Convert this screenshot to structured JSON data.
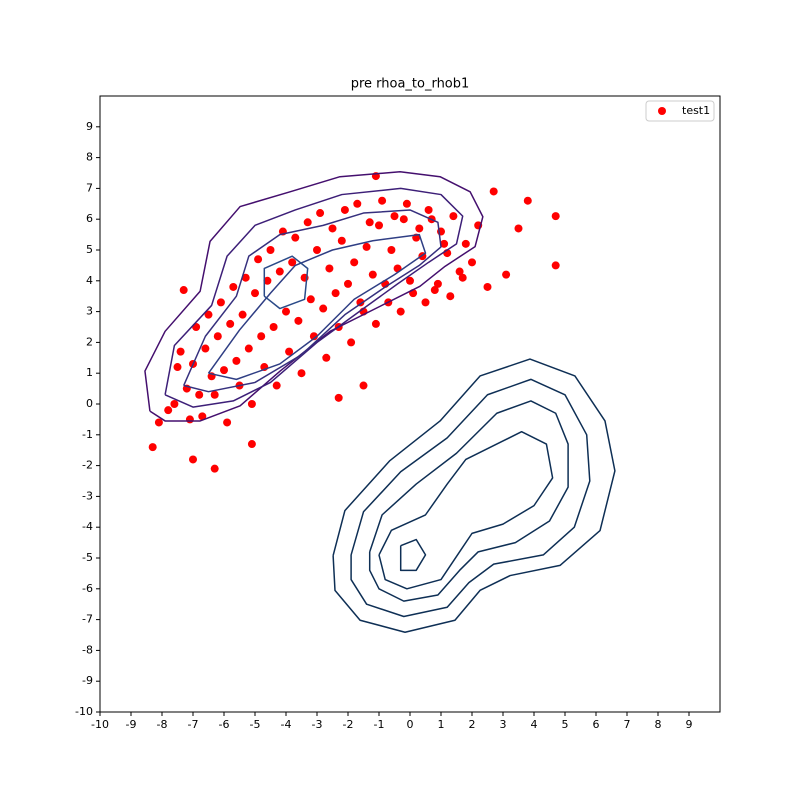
{
  "chart_data": {
    "type": "scatter",
    "title": "pre rhoa_to_rhob1",
    "xlim": [
      -10,
      10
    ],
    "ylim": [
      -10,
      10
    ],
    "xticks": [
      -10,
      -9,
      -8,
      -7,
      -6,
      -5,
      -4,
      -3,
      -2,
      -1,
      0,
      1,
      2,
      3,
      4,
      5,
      6,
      7,
      8,
      9
    ],
    "yticks": [
      -10,
      -9,
      -8,
      -7,
      -6,
      -5,
      -4,
      -3,
      -2,
      -1,
      0,
      1,
      2,
      3,
      4,
      5,
      6,
      7,
      8,
      9
    ],
    "legend": "upper right",
    "series": [
      {
        "name": "test1",
        "color": "#ff0000",
        "x": [
          -8.3,
          -6.3,
          -7.3,
          -1.1,
          2.7,
          3.8,
          4.7,
          4.7,
          3.5,
          3.1,
          2.5,
          -1.5,
          -2.3,
          -5.1,
          -7.0,
          -8.1,
          -7.8,
          -7.5,
          -7.2,
          -7.0,
          -6.8,
          -6.6,
          -6.4,
          -6.2,
          -6.0,
          -5.8,
          -5.6,
          -5.4,
          -5.2,
          -5.0,
          -4.8,
          -4.6,
          -4.4,
          -4.2,
          -4.0,
          -3.8,
          -3.6,
          -3.4,
          -3.2,
          -3.0,
          -2.8,
          -2.6,
          -2.4,
          -2.2,
          -2.0,
          -1.8,
          -1.6,
          -1.4,
          -1.2,
          -1.0,
          -0.8,
          -0.6,
          -0.4,
          -0.2,
          0.0,
          0.2,
          0.4,
          0.6,
          0.8,
          1.0,
          1.2,
          1.4,
          1.6,
          1.8,
          2.0,
          2.2,
          -7.6,
          -7.1,
          -6.7,
          -6.3,
          -5.9,
          -5.5,
          -5.1,
          -4.7,
          -4.3,
          -3.9,
          -3.5,
          -3.1,
          -2.7,
          -2.3,
          -1.9,
          -1.5,
          -1.1,
          -0.7,
          -0.3,
          0.1,
          0.5,
          0.9,
          1.3,
          1.7,
          -7.4,
          -6.9,
          -6.5,
          -6.1,
          -5.7,
          -5.3,
          -4.9,
          -4.5,
          -4.1,
          -3.7,
          -3.3,
          -2.9,
          -2.5,
          -2.1,
          -1.7,
          -1.3,
          -0.9,
          -0.5,
          -0.1,
          0.3,
          0.7,
          1.1
        ],
        "y": [
          -1.4,
          -2.1,
          3.7,
          7.4,
          6.9,
          6.6,
          6.1,
          4.5,
          5.7,
          4.2,
          3.8,
          0.6,
          0.2,
          -1.3,
          -1.8,
          -0.6,
          -0.2,
          1.2,
          0.5,
          1.3,
          0.3,
          1.8,
          0.9,
          2.2,
          1.1,
          2.6,
          1.4,
          2.9,
          1.8,
          3.6,
          2.2,
          4.0,
          2.5,
          4.3,
          3.0,
          4.6,
          2.7,
          4.1,
          3.4,
          5.0,
          3.1,
          4.4,
          3.6,
          5.3,
          3.9,
          4.6,
          3.3,
          5.1,
          4.2,
          5.8,
          3.9,
          5.0,
          4.4,
          6.0,
          4.0,
          5.4,
          4.8,
          6.3,
          3.7,
          5.6,
          4.9,
          6.1,
          4.3,
          5.2,
          4.6,
          5.8,
          0.0,
          -0.5,
          -0.4,
          0.3,
          -0.6,
          0.6,
          0.0,
          1.2,
          0.6,
          1.7,
          1.0,
          2.2,
          1.5,
          2.5,
          2.0,
          3.0,
          2.6,
          3.3,
          3.0,
          3.6,
          3.3,
          3.9,
          3.5,
          4.1,
          1.7,
          2.5,
          2.9,
          3.3,
          3.8,
          4.1,
          4.7,
          5.0,
          5.6,
          5.4,
          5.9,
          6.2,
          5.7,
          6.3,
          6.5,
          5.9,
          6.6,
          6.1,
          6.5,
          5.7,
          6.0,
          5.2
        ]
      }
    ],
    "contours": [
      {
        "color": "#440f6e",
        "x": [
          -8.39,
          -8.55,
          -7.9,
          -6.77,
          -6.45,
          -5.48,
          -3.87,
          -2.26,
          -0.32,
          0.97,
          1.94,
          2.35,
          2.1,
          1.13,
          0.32,
          -0.97,
          -2.58,
          -4.19,
          -5.48,
          -6.77,
          -7.9,
          -8.39
        ],
        "y": [
          -0.23,
          1.07,
          2.36,
          3.66,
          5.28,
          6.41,
          6.89,
          7.38,
          7.54,
          7.38,
          6.89,
          6.08,
          5.11,
          4.47,
          3.82,
          3.17,
          2.36,
          1.07,
          -0.06,
          -0.55,
          -0.55,
          -0.23
        ]
      },
      {
        "color": "#3d1f78",
        "x": [
          -7.9,
          -7.6,
          -6.4,
          -5.9,
          -5.0,
          -3.7,
          -2.2,
          -0.3,
          1.0,
          1.7,
          1.5,
          0.6,
          -0.4,
          -1.5,
          -3.0,
          -4.5,
          -5.7,
          -7.0,
          -7.9
        ],
        "y": [
          0.3,
          1.9,
          3.2,
          4.8,
          5.8,
          6.3,
          6.8,
          7.0,
          6.8,
          6.1,
          5.2,
          4.6,
          3.9,
          3.1,
          2.0,
          0.7,
          0.1,
          -0.1,
          0.3
        ]
      },
      {
        "color": "#36307e",
        "x": [
          -7.3,
          -6.6,
          -5.6,
          -5.2,
          -4.2,
          -2.8,
          -1.5,
          0.0,
          0.9,
          1.0,
          0.3,
          -0.8,
          -2.1,
          -3.5,
          -5.0,
          -6.5,
          -7.3
        ],
        "y": [
          0.6,
          2.2,
          3.5,
          4.8,
          5.5,
          5.8,
          6.2,
          6.3,
          5.9,
          5.1,
          4.5,
          3.8,
          2.9,
          1.6,
          0.7,
          0.4,
          0.6
        ]
      },
      {
        "color": "#2f3e84",
        "x": [
          -6.5,
          -5.5,
          -4.5,
          -3.7,
          -2.5,
          -1.2,
          0.3,
          0.5,
          -0.5,
          -1.8,
          -3.0,
          -4.2,
          -5.6,
          -6.5
        ],
        "y": [
          1.0,
          2.4,
          3.6,
          4.5,
          5.0,
          5.3,
          5.5,
          4.9,
          4.2,
          3.4,
          2.2,
          1.3,
          0.8,
          1.0
        ]
      },
      {
        "color": "#2a4a88",
        "x": [
          -4.7,
          -4.7,
          -3.8,
          -3.3,
          -3.4,
          -4.2,
          -4.7
        ],
        "y": [
          3.5,
          4.4,
          4.8,
          4.4,
          3.4,
          3.1,
          3.5
        ]
      },
      {
        "color": "#0e2f55",
        "x": [
          -2.48,
          -2.1,
          -0.65,
          0.97,
          2.26,
          3.87,
          5.32,
          6.29,
          6.61,
          6.13,
          4.84,
          3.23,
          2.26,
          1.45,
          -0.16,
          -1.61,
          -2.42,
          -2.48
        ],
        "y": [
          -4.92,
          -3.46,
          -1.84,
          -0.55,
          0.91,
          1.46,
          0.91,
          -0.55,
          -2.17,
          -4.11,
          -5.24,
          -5.57,
          -6.05,
          -7.02,
          -7.41,
          -7.02,
          -6.05,
          -4.92
        ]
      },
      {
        "color": "#0e2f55",
        "x": [
          -1.9,
          -1.5,
          -0.3,
          1.2,
          2.5,
          3.9,
          5.0,
          5.7,
          5.8,
          5.3,
          4.3,
          2.7,
          1.9,
          1.2,
          -0.2,
          -1.4,
          -1.9,
          -1.9
        ],
        "y": [
          -4.9,
          -3.5,
          -2.2,
          -1.1,
          0.3,
          0.8,
          0.3,
          -1.0,
          -2.5,
          -4.0,
          -4.9,
          -5.2,
          -5.8,
          -6.6,
          -6.9,
          -6.5,
          -5.7,
          -4.9
        ]
      },
      {
        "color": "#0e2f55",
        "x": [
          -1.3,
          -0.9,
          0.2,
          1.5,
          2.8,
          3.9,
          4.7,
          5.1,
          5.1,
          4.5,
          3.4,
          2.2,
          1.6,
          0.9,
          -0.2,
          -1.0,
          -1.3,
          -1.3
        ],
        "y": [
          -4.8,
          -3.6,
          -2.6,
          -1.6,
          -0.3,
          0.1,
          -0.3,
          -1.3,
          -2.7,
          -3.8,
          -4.5,
          -4.8,
          -5.4,
          -6.2,
          -6.4,
          -6.0,
          -5.4,
          -4.8
        ]
      },
      {
        "color": "#0e2f55",
        "x": [
          -1.0,
          -0.6,
          0.5,
          1.2,
          1.8,
          3.0,
          3.6,
          4.4,
          4.6,
          4.0,
          3.0,
          2.0,
          1.6,
          1.0,
          -0.1,
          -0.8,
          -1.0
        ],
        "y": [
          -4.9,
          -4.1,
          -3.6,
          -2.6,
          -1.8,
          -1.2,
          -0.9,
          -1.3,
          -2.4,
          -3.3,
          -3.9,
          -4.2,
          -4.8,
          -5.7,
          -6.0,
          -5.7,
          -4.9
        ]
      },
      {
        "color": "#0e2f55",
        "x": [
          -0.3,
          0.2,
          0.5,
          0.2,
          -0.3,
          -0.3
        ],
        "y": [
          -4.6,
          -4.4,
          -4.9,
          -5.4,
          -5.4,
          -4.6
        ]
      }
    ]
  }
}
